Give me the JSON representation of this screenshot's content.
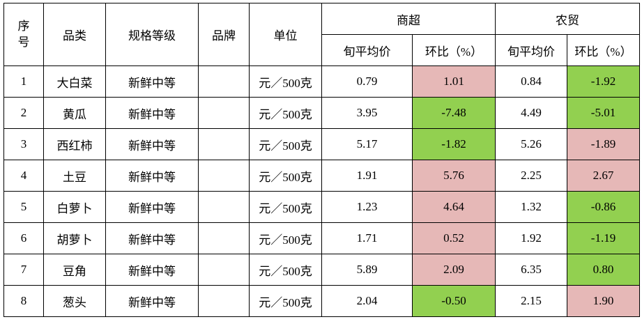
{
  "table": {
    "headers": {
      "seq": "序\n号",
      "category": "品类",
      "spec": "规格等级",
      "brand": "品牌",
      "unit": "单位",
      "supermarket": "商超",
      "farmers_market": "农贸",
      "avg_price": "旬平均价",
      "mom": "环比（%）"
    },
    "rows": [
      {
        "seq": "1",
        "category": "大白菜",
        "spec": "新鲜中等",
        "brand": "",
        "unit": "元／500克",
        "sm_price": "0.79",
        "sm_mom": "1.01",
        "sm_color": "#e6b8b7",
        "fm_price": "0.84",
        "fm_mom": "-1.92",
        "fm_color": "#92d050"
      },
      {
        "seq": "2",
        "category": "黄瓜",
        "spec": "新鲜中等",
        "brand": "",
        "unit": "元／500克",
        "sm_price": "3.95",
        "sm_mom": "-7.48",
        "sm_color": "#92d050",
        "fm_price": "4.49",
        "fm_mom": "-5.01",
        "fm_color": "#92d050"
      },
      {
        "seq": "3",
        "category": "西红柿",
        "spec": "新鲜中等",
        "brand": "",
        "unit": "元／500克",
        "sm_price": "5.17",
        "sm_mom": "-1.82",
        "sm_color": "#92d050",
        "fm_price": "5.26",
        "fm_mom": "-1.89",
        "fm_color": "#e6b8b7"
      },
      {
        "seq": "4",
        "category": "土豆",
        "spec": "新鲜中等",
        "brand": "",
        "unit": "元／500克",
        "sm_price": "1.91",
        "sm_mom": "5.76",
        "sm_color": "#e6b8b7",
        "fm_price": "2.25",
        "fm_mom": "2.67",
        "fm_color": "#e6b8b7"
      },
      {
        "seq": "5",
        "category": "白萝卜",
        "spec": "新鲜中等",
        "brand": "",
        "unit": "元／500克",
        "sm_price": "1.23",
        "sm_mom": "4.64",
        "sm_color": "#e6b8b7",
        "fm_price": "1.32",
        "fm_mom": "-0.86",
        "fm_color": "#92d050"
      },
      {
        "seq": "6",
        "category": "胡萝卜",
        "spec": "新鲜中等",
        "brand": "",
        "unit": "元／500克",
        "sm_price": "1.71",
        "sm_mom": "0.52",
        "sm_color": "#e6b8b7",
        "fm_price": "1.92",
        "fm_mom": "-1.19",
        "fm_color": "#92d050"
      },
      {
        "seq": "7",
        "category": "豆角",
        "spec": "新鲜中等",
        "brand": "",
        "unit": "元／500克",
        "sm_price": "5.89",
        "sm_mom": "2.09",
        "sm_color": "#e6b8b7",
        "fm_price": "6.35",
        "fm_mom": "0.80",
        "fm_color": "#92d050"
      },
      {
        "seq": "8",
        "category": "葱头",
        "spec": "新鲜中等",
        "brand": "",
        "unit": "元／500克",
        "sm_price": "2.04",
        "sm_mom": "-0.50",
        "sm_color": "#92d050",
        "fm_price": "2.15",
        "fm_mom": "1.90",
        "fm_color": "#e6b8b7"
      }
    ]
  }
}
